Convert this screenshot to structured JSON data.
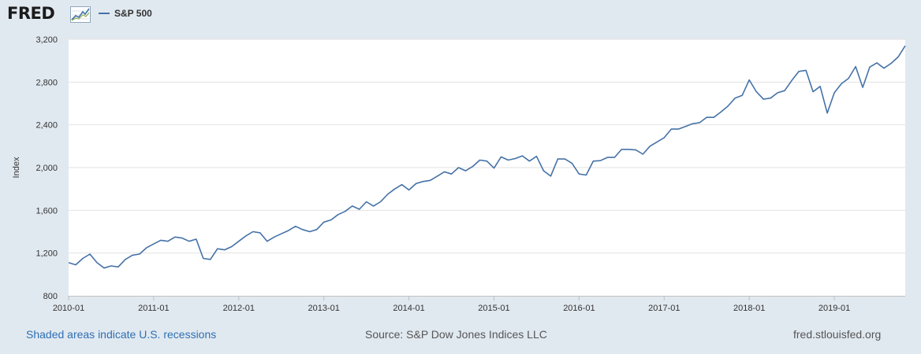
{
  "header": {
    "logo_text": "FRED",
    "logo_icon": "line-graph-icon",
    "legend_label": "S&P 500",
    "legend_color": "#4572a7"
  },
  "chart_data": {
    "type": "line",
    "title": "",
    "xlabel": "",
    "ylabel": "Index",
    "ylim": [
      800,
      3200
    ],
    "yticks": [
      800,
      1200,
      1600,
      2000,
      2400,
      2800,
      3200
    ],
    "ytick_labels": [
      "800",
      "1,200",
      "1,600",
      "2,000",
      "2,400",
      "2,800",
      "3,200"
    ],
    "xlim": [
      "2010-01",
      "2019-11"
    ],
    "xtick_labels": [
      "2010-01",
      "2011-01",
      "2012-01",
      "2013-01",
      "2014-01",
      "2015-01",
      "2016-01",
      "2017-01",
      "2018-01",
      "2019-01"
    ],
    "grid": true,
    "series": [
      {
        "name": "S&P 500",
        "color": "#4572a7",
        "points": [
          [
            "2010-01",
            1110
          ],
          [
            "2010-02",
            1090
          ],
          [
            "2010-03",
            1150
          ],
          [
            "2010-04",
            1190
          ],
          [
            "2010-05",
            1110
          ],
          [
            "2010-06",
            1060
          ],
          [
            "2010-07",
            1080
          ],
          [
            "2010-08",
            1070
          ],
          [
            "2010-09",
            1140
          ],
          [
            "2010-10",
            1180
          ],
          [
            "2010-11",
            1190
          ],
          [
            "2010-12",
            1250
          ],
          [
            "2011-01",
            1285
          ],
          [
            "2011-02",
            1320
          ],
          [
            "2011-03",
            1310
          ],
          [
            "2011-04",
            1350
          ],
          [
            "2011-05",
            1340
          ],
          [
            "2011-06",
            1310
          ],
          [
            "2011-07",
            1330
          ],
          [
            "2011-08",
            1150
          ],
          [
            "2011-09",
            1140
          ],
          [
            "2011-10",
            1240
          ],
          [
            "2011-11",
            1230
          ],
          [
            "2011-12",
            1260
          ],
          [
            "2012-01",
            1310
          ],
          [
            "2012-02",
            1360
          ],
          [
            "2012-03",
            1400
          ],
          [
            "2012-04",
            1390
          ],
          [
            "2012-05",
            1310
          ],
          [
            "2012-06",
            1350
          ],
          [
            "2012-07",
            1380
          ],
          [
            "2012-08",
            1410
          ],
          [
            "2012-09",
            1450
          ],
          [
            "2012-10",
            1420
          ],
          [
            "2012-11",
            1400
          ],
          [
            "2012-12",
            1420
          ],
          [
            "2013-01",
            1490
          ],
          [
            "2013-02",
            1510
          ],
          [
            "2013-03",
            1560
          ],
          [
            "2013-04",
            1590
          ],
          [
            "2013-05",
            1640
          ],
          [
            "2013-06",
            1610
          ],
          [
            "2013-07",
            1680
          ],
          [
            "2013-08",
            1640
          ],
          [
            "2013-09",
            1680
          ],
          [
            "2013-10",
            1750
          ],
          [
            "2013-11",
            1800
          ],
          [
            "2013-12",
            1840
          ],
          [
            "2014-01",
            1790
          ],
          [
            "2014-02",
            1850
          ],
          [
            "2014-03",
            1870
          ],
          [
            "2014-04",
            1880
          ],
          [
            "2014-05",
            1920
          ],
          [
            "2014-06",
            1960
          ],
          [
            "2014-07",
            1940
          ],
          [
            "2014-08",
            2000
          ],
          [
            "2014-09",
            1970
          ],
          [
            "2014-10",
            2010
          ],
          [
            "2014-11",
            2070
          ],
          [
            "2014-12",
            2060
          ],
          [
            "2015-01",
            1995
          ],
          [
            "2015-02",
            2100
          ],
          [
            "2015-03",
            2070
          ],
          [
            "2015-04",
            2085
          ],
          [
            "2015-05",
            2110
          ],
          [
            "2015-06",
            2060
          ],
          [
            "2015-07",
            2105
          ],
          [
            "2015-08",
            1970
          ],
          [
            "2015-09",
            1920
          ],
          [
            "2015-10",
            2080
          ],
          [
            "2015-11",
            2080
          ],
          [
            "2015-12",
            2040
          ],
          [
            "2016-01",
            1940
          ],
          [
            "2016-02",
            1930
          ],
          [
            "2016-03",
            2060
          ],
          [
            "2016-04",
            2065
          ],
          [
            "2016-05",
            2095
          ],
          [
            "2016-06",
            2095
          ],
          [
            "2016-07",
            2170
          ],
          [
            "2016-08",
            2170
          ],
          [
            "2016-09",
            2165
          ],
          [
            "2016-10",
            2125
          ],
          [
            "2016-11",
            2200
          ],
          [
            "2016-12",
            2240
          ],
          [
            "2017-01",
            2280
          ],
          [
            "2017-02",
            2360
          ],
          [
            "2017-03",
            2360
          ],
          [
            "2017-04",
            2385
          ],
          [
            "2017-05",
            2410
          ],
          [
            "2017-06",
            2420
          ],
          [
            "2017-07",
            2470
          ],
          [
            "2017-08",
            2470
          ],
          [
            "2017-09",
            2520
          ],
          [
            "2017-10",
            2575
          ],
          [
            "2017-11",
            2650
          ],
          [
            "2017-12",
            2675
          ],
          [
            "2018-01",
            2820
          ],
          [
            "2018-02",
            2710
          ],
          [
            "2018-03",
            2640
          ],
          [
            "2018-04",
            2650
          ],
          [
            "2018-05",
            2700
          ],
          [
            "2018-06",
            2720
          ],
          [
            "2018-07",
            2815
          ],
          [
            "2018-08",
            2900
          ],
          [
            "2018-09",
            2910
          ],
          [
            "2018-10",
            2710
          ],
          [
            "2018-11",
            2760
          ],
          [
            "2018-12",
            2510
          ],
          [
            "2019-01",
            2700
          ],
          [
            "2019-02",
            2785
          ],
          [
            "2019-03",
            2835
          ],
          [
            "2019-04",
            2945
          ],
          [
            "2019-05",
            2750
          ],
          [
            "2019-06",
            2940
          ],
          [
            "2019-07",
            2980
          ],
          [
            "2019-08",
            2930
          ],
          [
            "2019-09",
            2975
          ],
          [
            "2019-10",
            3035
          ],
          [
            "2019-11",
            3140
          ]
        ]
      }
    ]
  },
  "footer": {
    "recession_note": "Shaded areas indicate U.S. recessions",
    "source": "Source: S&P Dow Jones Indices LLC",
    "site": "fred.stlouisfed.org"
  }
}
